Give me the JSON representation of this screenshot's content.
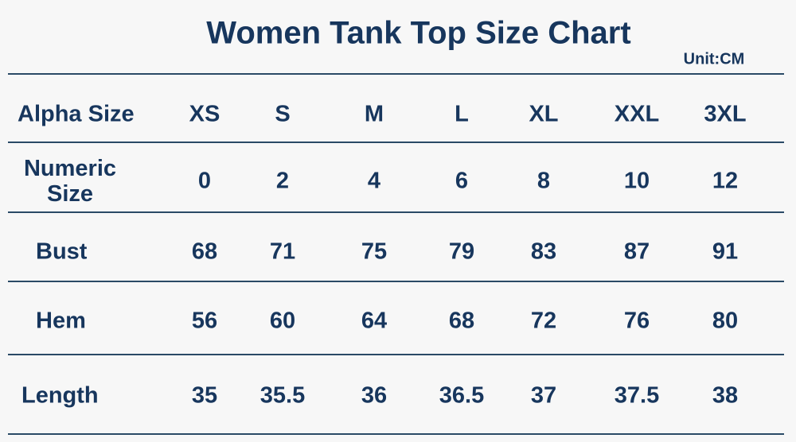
{
  "title": "Women Tank Top Size Chart",
  "unit": "Unit:CM",
  "table": {
    "columns": [
      "Alpha Size",
      "XS",
      "S",
      "M",
      "L",
      "XL",
      "XXL",
      "3XL"
    ],
    "rows": [
      [
        "Numeric Size",
        0,
        2,
        4,
        6,
        8,
        10,
        12
      ],
      [
        "Bust",
        68,
        71,
        75,
        79,
        83,
        87,
        91
      ],
      [
        "Hem",
        56,
        60,
        64,
        68,
        72,
        76,
        80
      ],
      [
        "Length",
        35,
        35.5,
        36,
        36.5,
        37,
        37.5,
        38
      ]
    ]
  }
}
